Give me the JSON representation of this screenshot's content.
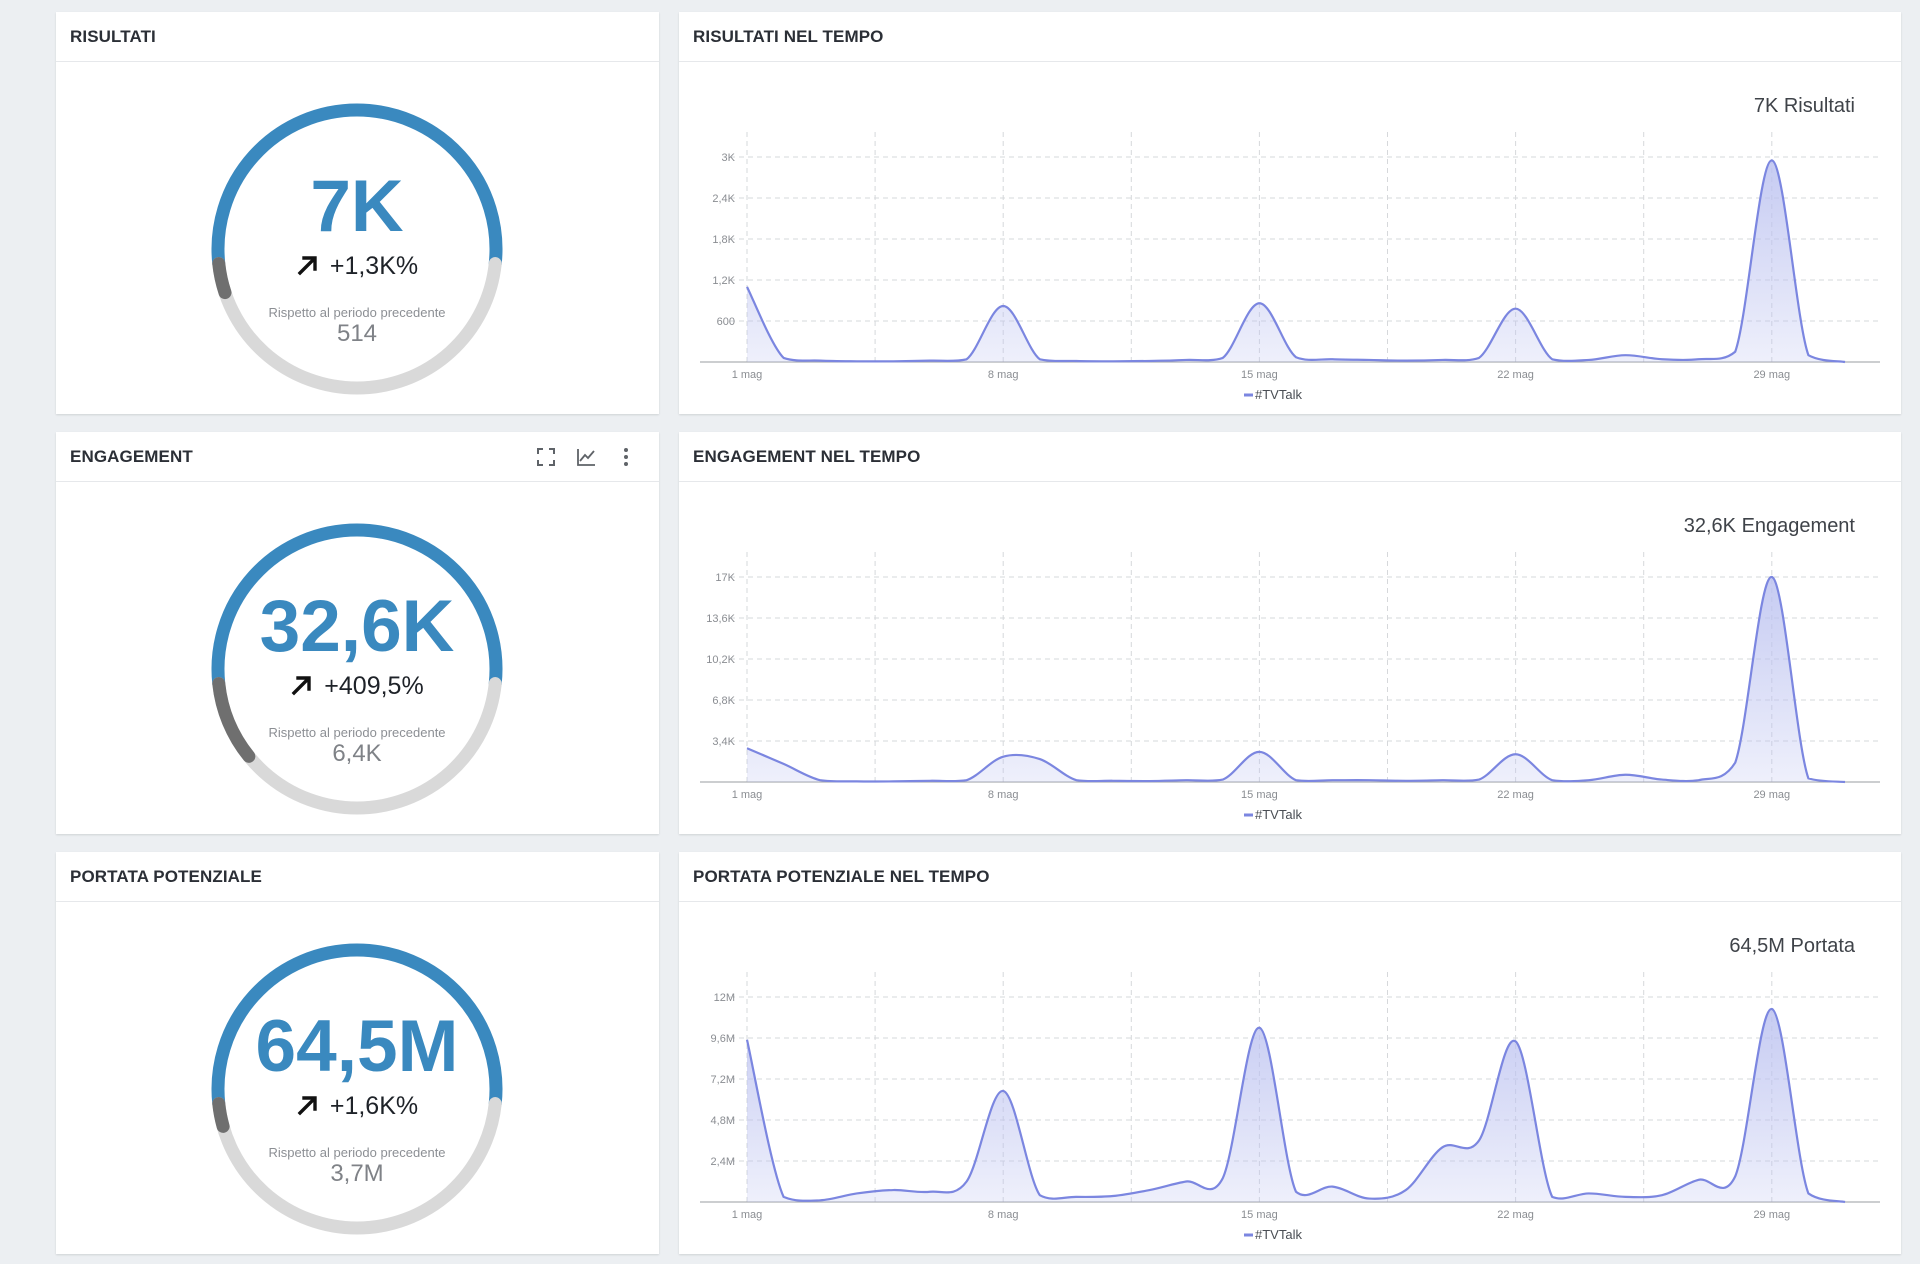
{
  "panels": [
    {
      "gauge_title": "RISULTATI",
      "value": "7K",
      "change": "+1,3K%",
      "caption": "Rispetto al periodo precedente",
      "previous": "514",
      "previous_fraction": 0.073,
      "chart_title": "RISULTATI NEL TEMPO",
      "chart_total": "7K Risultati"
    },
    {
      "gauge_title": "ENGAGEMENT",
      "value": "32,6K",
      "change": "+409,5%",
      "caption": "Rispetto al periodo precedente",
      "previous": "6,4K",
      "previous_fraction": 0.196,
      "chart_title": "ENGAGEMENT NEL TEMPO",
      "chart_total": "32,6K Engagement"
    },
    {
      "gauge_title": "PORTATA POTENZIALE",
      "value": "64,5M",
      "change": "+1,6K%",
      "caption": "Rispetto al periodo precedente",
      "previous": "3,7M",
      "previous_fraction": 0.057,
      "chart_title": "PORTATA POTENZIALE NEL TEMPO",
      "chart_total": "64,5M Portata"
    }
  ],
  "toolbar_icons": [
    "fullscreen-icon",
    "line-chart-icon",
    "more-vert-icon"
  ],
  "colors": {
    "accent_blue": "#3a89bf",
    "previous_dark": "#6f6f6f",
    "track_gray": "#d9d9d9",
    "series_line": "#7b86e0",
    "series_fill": "#bcc2f0"
  },
  "chart_data": [
    {
      "type": "area",
      "title": "RISULTATI NEL TEMPO",
      "series_name": "#TVTalk",
      "x_labels": [
        "1 mag",
        "8 mag",
        "15 mag",
        "22 mag",
        "29 mag"
      ],
      "x_tick_days": [
        1,
        8,
        15,
        22,
        29
      ],
      "y_ticks": [
        600,
        1200,
        1800,
        2400,
        3000
      ],
      "y_tick_labels": [
        "600",
        "1,2K",
        "1,8K",
        "2,4K",
        "3K"
      ],
      "ylim": [
        0,
        3000
      ],
      "xlim": [
        1,
        31
      ],
      "grid": true,
      "x": [
        1,
        2,
        3,
        4,
        5,
        6,
        7,
        8,
        9,
        10,
        11,
        12,
        13,
        14,
        15,
        16,
        17,
        18,
        19,
        20,
        21,
        22,
        23,
        24,
        25,
        26,
        27,
        28,
        29,
        30,
        31
      ],
      "values": [
        1100,
        60,
        20,
        10,
        10,
        20,
        40,
        820,
        40,
        15,
        10,
        15,
        30,
        60,
        860,
        70,
        40,
        30,
        20,
        30,
        60,
        780,
        40,
        30,
        100,
        40,
        40,
        150,
        2950,
        100,
        0
      ]
    },
    {
      "type": "area",
      "title": "ENGAGEMENT NEL TEMPO",
      "series_name": "#TVTalk",
      "x_labels": [
        "1 mag",
        "8 mag",
        "15 mag",
        "22 mag",
        "29 mag"
      ],
      "x_tick_days": [
        1,
        8,
        15,
        22,
        29
      ],
      "y_ticks": [
        3400,
        6800,
        10200,
        13600,
        17000
      ],
      "y_tick_labels": [
        "3,4K",
        "6,8K",
        "10,2K",
        "13,6K",
        "17K"
      ],
      "ylim": [
        0,
        17000
      ],
      "xlim": [
        1,
        31
      ],
      "grid": true,
      "x": [
        1,
        2,
        3,
        4,
        5,
        6,
        7,
        8,
        9,
        10,
        11,
        12,
        13,
        14,
        15,
        16,
        17,
        18,
        19,
        20,
        21,
        22,
        23,
        24,
        25,
        26,
        27,
        28,
        29,
        30,
        31
      ],
      "values": [
        2800,
        1500,
        150,
        50,
        50,
        100,
        150,
        2100,
        1900,
        150,
        100,
        80,
        150,
        200,
        2500,
        150,
        150,
        150,
        100,
        150,
        200,
        2300,
        150,
        150,
        600,
        200,
        150,
        1600,
        17000,
        300,
        0
      ]
    },
    {
      "type": "area",
      "title": "PORTATA POTENZIALE NEL TEMPO",
      "series_name": "#TVTalk",
      "x_labels": [
        "1 mag",
        "8 mag",
        "15 mag",
        "22 mag",
        "29 mag"
      ],
      "x_tick_days": [
        1,
        8,
        15,
        22,
        29
      ],
      "y_ticks": [
        2400000,
        4800000,
        7200000,
        9600000,
        12000000
      ],
      "y_tick_labels": [
        "2,4M",
        "4,8M",
        "7,2M",
        "9,6M",
        "12M"
      ],
      "ylim": [
        0,
        12000000
      ],
      "xlim": [
        1,
        31
      ],
      "grid": true,
      "x": [
        1,
        2,
        3,
        4,
        5,
        6,
        7,
        8,
        9,
        10,
        11,
        12,
        13,
        14,
        15,
        16,
        17,
        18,
        19,
        20,
        21,
        22,
        23,
        24,
        25,
        26,
        27,
        28,
        29,
        30,
        31
      ],
      "values": [
        9500000,
        300000,
        100000,
        500000,
        700000,
        600000,
        1200000,
        6500000,
        400000,
        300000,
        350000,
        700000,
        1200000,
        1400000,
        10200000,
        600000,
        900000,
        200000,
        700000,
        3200000,
        3600000,
        9400000,
        300000,
        500000,
        300000,
        400000,
        1300000,
        1500000,
        11300000,
        500000,
        0
      ]
    }
  ]
}
